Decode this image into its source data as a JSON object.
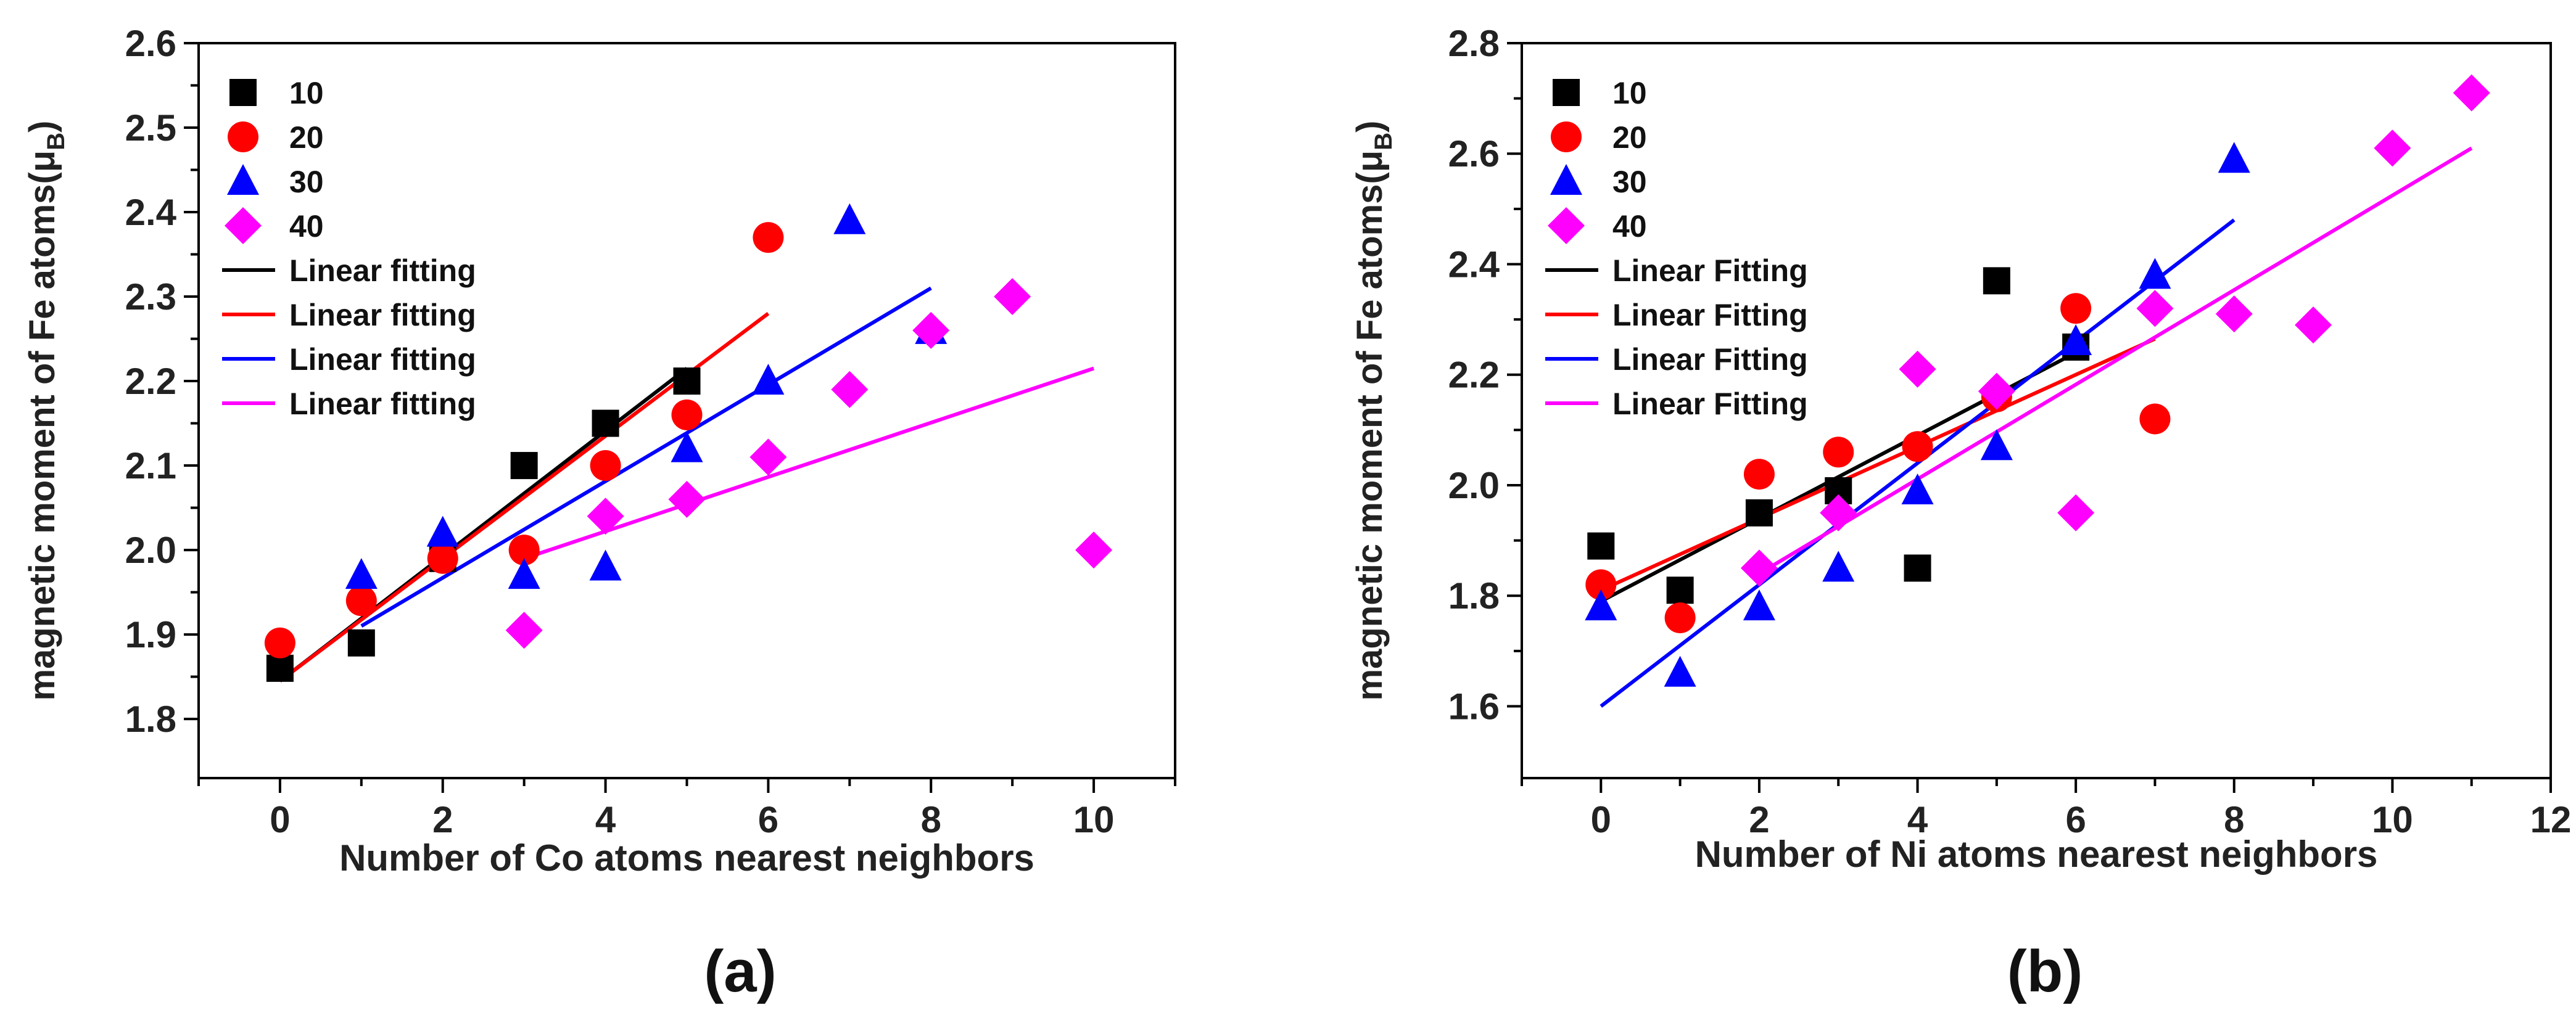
{
  "colors": {
    "10": "#000000",
    "20": "#ff0000",
    "30": "#0000ff",
    "40": "#ff00ff"
  },
  "chart_data": [
    {
      "type": "scatter",
      "panel_label": "(a)",
      "title": "",
      "xlabel": "Number of Co atoms nearest neighbors",
      "ylabel": "magnetic moment of Fe atoms(μ",
      "ylabel_sub": "B",
      "ylabel_close": ")",
      "xlim": [
        -1,
        11
      ],
      "ylim": [
        1.73,
        2.6
      ],
      "xticks": [
        0,
        2,
        4,
        6,
        8,
        10
      ],
      "xtick_labels": [
        "0",
        "2",
        "4",
        "6",
        "8",
        "10"
      ],
      "yticks": [
        1.8,
        1.9,
        2.0,
        2.1,
        2.2,
        2.3,
        2.4,
        2.5,
        2.6
      ],
      "ytick_labels": [
        "1.8",
        "1.9",
        "2.0",
        "2.1",
        "2.2",
        "2.3",
        "2.4",
        "2.5",
        "2.6"
      ],
      "legend_position": "top-left",
      "series": [
        {
          "name": "10",
          "marker": "square",
          "color": "#000000",
          "points": [
            [
              0,
              1.86
            ],
            [
              1,
              1.89
            ],
            [
              2,
              1.99
            ],
            [
              3,
              2.1
            ],
            [
              4,
              2.15
            ],
            [
              5,
              2.2
            ]
          ]
        },
        {
          "name": "20",
          "marker": "circle",
          "color": "#ff0000",
          "points": [
            [
              0,
              1.89
            ],
            [
              1,
              1.94
            ],
            [
              2,
              1.99
            ],
            [
              3,
              2.0
            ],
            [
              4,
              2.1
            ],
            [
              5,
              2.16
            ],
            [
              6,
              2.37
            ]
          ]
        },
        {
          "name": "30",
          "marker": "triangle",
          "color": "#0000ff",
          "points": [
            [
              1,
              1.97
            ],
            [
              2,
              2.02
            ],
            [
              3,
              1.97
            ],
            [
              4,
              1.98
            ],
            [
              5,
              2.12
            ],
            [
              6,
              2.2
            ],
            [
              7,
              2.39
            ],
            [
              8,
              2.26
            ]
          ]
        },
        {
          "name": "40",
          "marker": "diamond",
          "color": "#ff00ff",
          "points": [
            [
              3,
              1.905
            ],
            [
              4,
              2.04
            ],
            [
              5,
              2.06
            ],
            [
              6,
              2.11
            ],
            [
              7,
              2.19
            ],
            [
              8,
              2.26
            ],
            [
              9,
              2.3
            ],
            [
              10,
              2.0
            ]
          ]
        }
      ],
      "fits": [
        {
          "name": "Linear fitting",
          "color": "#000000",
          "x": [
            0,
            5
          ],
          "y": [
            1.845,
            2.215
          ]
        },
        {
          "name": "Linear fitting",
          "color": "#ff0000",
          "x": [
            0,
            6
          ],
          "y": [
            1.845,
            2.28
          ]
        },
        {
          "name": "Linear fitting",
          "color": "#0000ff",
          "x": [
            1,
            8
          ],
          "y": [
            1.91,
            2.31
          ]
        },
        {
          "name": "Linear fitting",
          "color": "#ff00ff",
          "x": [
            3,
            10
          ],
          "y": [
            1.99,
            2.215
          ]
        }
      ]
    },
    {
      "type": "scatter",
      "panel_label": "(b)",
      "title": "",
      "xlabel": "Number of Ni atoms nearest neighbors",
      "ylabel": "magnetic moment of Fe atoms(μ",
      "ylabel_sub": "B",
      "ylabel_close": ")",
      "xlim": [
        -1,
        12
      ],
      "ylim": [
        1.47,
        2.8
      ],
      "xticks": [
        0,
        2,
        4,
        6,
        8,
        10,
        12
      ],
      "xtick_labels": [
        "0",
        "2",
        "4",
        "6",
        "8",
        "10",
        "12"
      ],
      "yticks": [
        1.6,
        1.8,
        2.0,
        2.2,
        2.4,
        2.6,
        2.8
      ],
      "ytick_labels": [
        "1.6",
        "1.8",
        "2.0",
        "2.2",
        "2.4",
        "2.6",
        "2.8"
      ],
      "legend_position": "top-left",
      "series": [
        {
          "name": "10",
          "marker": "square",
          "color": "#000000",
          "points": [
            [
              0,
              1.89
            ],
            [
              1,
              1.81
            ],
            [
              2,
              1.95
            ],
            [
              3,
              1.99
            ],
            [
              4,
              1.85
            ],
            [
              5,
              2.37
            ],
            [
              6,
              2.25
            ]
          ]
        },
        {
          "name": "20",
          "marker": "circle",
          "color": "#ff0000",
          "points": [
            [
              0,
              1.82
            ],
            [
              1,
              1.76
            ],
            [
              2,
              2.02
            ],
            [
              3,
              2.06
            ],
            [
              4,
              2.07
            ],
            [
              5,
              2.16
            ],
            [
              6,
              2.32
            ],
            [
              7,
              2.12
            ]
          ]
        },
        {
          "name": "30",
          "marker": "triangle",
          "color": "#0000ff",
          "points": [
            [
              0,
              1.78
            ],
            [
              1,
              1.66
            ],
            [
              2,
              1.78
            ],
            [
              3,
              1.85
            ],
            [
              4,
              1.99
            ],
            [
              5,
              2.07
            ],
            [
              6,
              2.26
            ],
            [
              7,
              2.38
            ],
            [
              8,
              2.59
            ]
          ]
        },
        {
          "name": "40",
          "marker": "diamond",
          "color": "#ff00ff",
          "points": [
            [
              2,
              1.85
            ],
            [
              3,
              1.95
            ],
            [
              4,
              2.21
            ],
            [
              5,
              2.17
            ],
            [
              6,
              1.95
            ],
            [
              7,
              2.32
            ],
            [
              8,
              2.31
            ],
            [
              9,
              2.29
            ],
            [
              10,
              2.61
            ],
            [
              11,
              2.71
            ]
          ]
        }
      ],
      "fits": [
        {
          "name": "Linear Fitting",
          "color": "#000000",
          "x": [
            0,
            6
          ],
          "y": [
            1.79,
            2.24
          ]
        },
        {
          "name": "Linear Fitting",
          "color": "#ff0000",
          "x": [
            0,
            7
          ],
          "y": [
            1.81,
            2.265
          ]
        },
        {
          "name": "Linear Fitting",
          "color": "#0000ff",
          "x": [
            0,
            8
          ],
          "y": [
            1.6,
            2.48
          ]
        },
        {
          "name": "Linear Fitting",
          "color": "#ff00ff",
          "x": [
            2,
            11
          ],
          "y": [
            1.84,
            2.61
          ]
        }
      ]
    }
  ]
}
